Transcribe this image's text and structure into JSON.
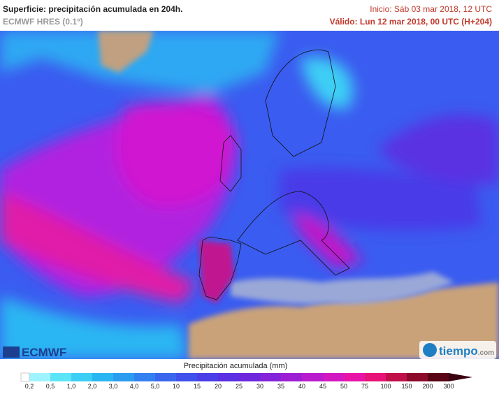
{
  "header": {
    "title": "Superficie: precipitación acumulada en 204h.",
    "model": "ECMWF HRES (0.1°)",
    "init": "Inicio: Sáb 03 mar 2018, 12 UTC",
    "valid": "Válido: Lun 12 mar 2018, 00 UTC (H+204)"
  },
  "logos": {
    "left": "ECMWF",
    "right": "tiempo",
    "right_suffix": ".com"
  },
  "legend": {
    "label": "Precipitación acumulada (mm)",
    "ticks": [
      "0,2",
      "0,5",
      "1,0",
      "2,0",
      "3,0",
      "4,0",
      "5,0",
      "10",
      "15",
      "20",
      "25",
      "30",
      "35",
      "40",
      "45",
      "50",
      "75",
      "100",
      "150",
      "200",
      "300"
    ],
    "colors": [
      "#9ff3ff",
      "#5ee4f7",
      "#3ccff5",
      "#2ab6f2",
      "#2b9cf0",
      "#3380f0",
      "#3a66ee",
      "#4050ea",
      "#4a3ee6",
      "#5a30e2",
      "#6d28de",
      "#8424da",
      "#9d1fd4",
      "#b81ccc",
      "#d218c0",
      "#e814a8",
      "#e81378",
      "#c0104a",
      "#8c0a2a",
      "#5a0418",
      "#3a0010"
    ]
  }
}
